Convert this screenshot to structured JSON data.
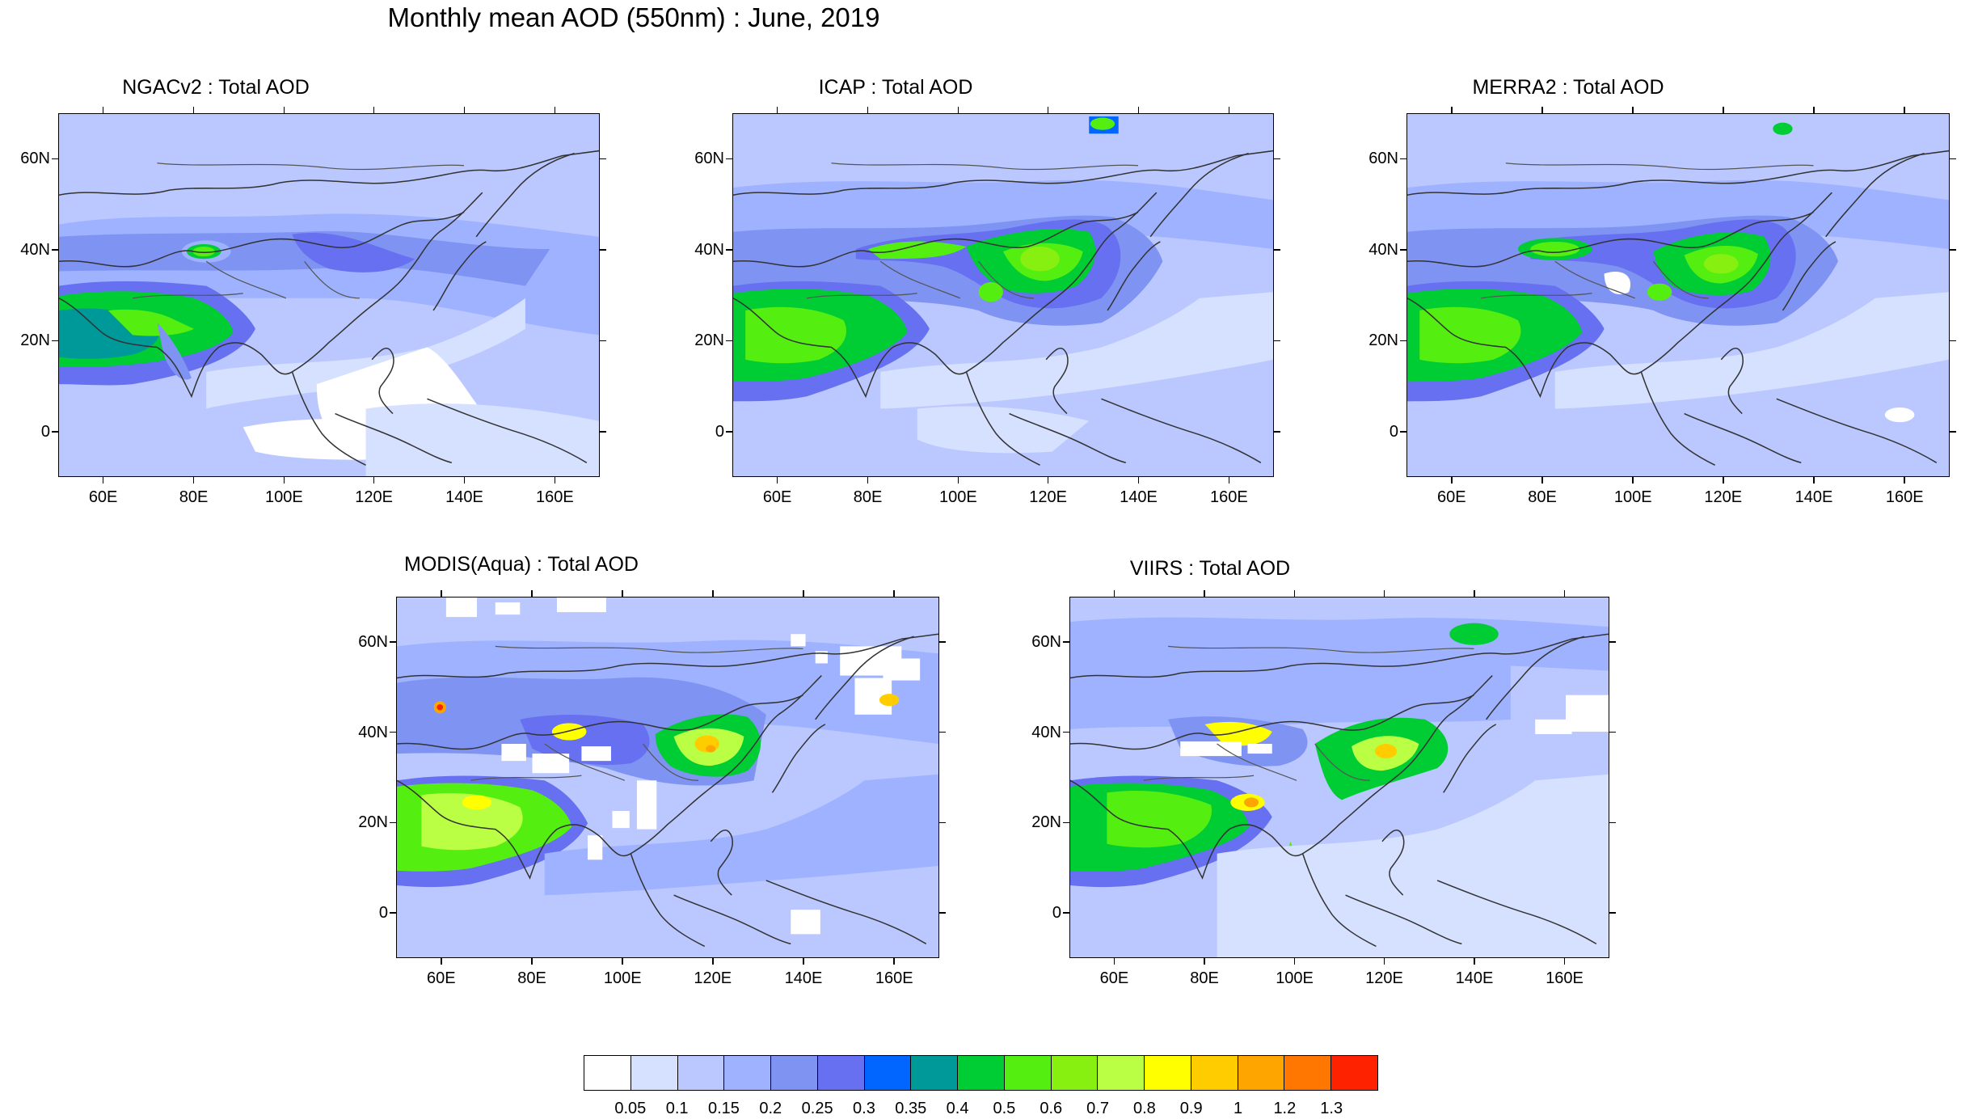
{
  "figure": {
    "title": "Monthly mean AOD (550nm) : June, 2019"
  },
  "panels": [
    {
      "id": "ngac",
      "title": "NGACv2 : Total AOD"
    },
    {
      "id": "icap",
      "title": "ICAP : Total AOD"
    },
    {
      "id": "merra2",
      "title": "MERRA2 : Total AOD"
    },
    {
      "id": "modis",
      "title": "MODIS(Aqua) : Total AOD"
    },
    {
      "id": "viirs",
      "title": "VIIRS : Total AOD"
    }
  ],
  "axes": {
    "lat_ticks": [
      "60N",
      "40N",
      "20N",
      "0"
    ],
    "lon_ticks": [
      "60E",
      "80E",
      "100E",
      "120E",
      "140E",
      "160E"
    ]
  },
  "colorbar": {
    "colors": [
      "#ffffff",
      "#d6e0ff",
      "#bac8ff",
      "#9eb2ff",
      "#7f93f2",
      "#6670f0",
      "#0066ff",
      "#00999a",
      "#00cc33",
      "#55ee11",
      "#88f011",
      "#bbff44",
      "#ffff00",
      "#ffcc00",
      "#ffa500",
      "#ff7700",
      "#ff2200"
    ],
    "labels": [
      "0.05",
      "0.1",
      "0.15",
      "0.2",
      "0.25",
      "0.3",
      "0.35",
      "0.4",
      "0.5",
      "0.6",
      "0.7",
      "0.8",
      "0.9",
      "1",
      "1.2",
      "1.3"
    ]
  }
}
